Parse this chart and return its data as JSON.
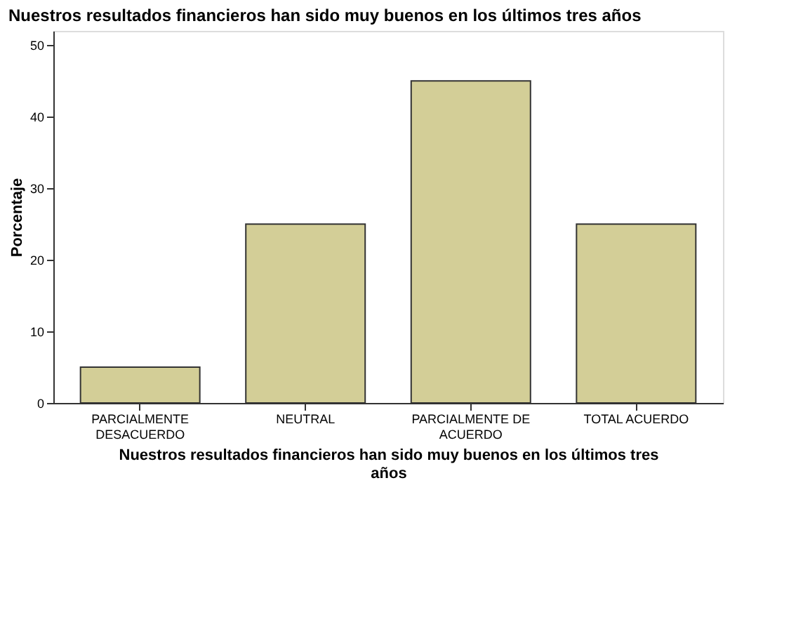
{
  "chart_data": {
    "type": "bar",
    "title": "Nuestros resultados financieros han sido muy buenos en los últimos tres años",
    "xlabel": "Nuestros resultados financieros han sido muy buenos en los últimos tres años",
    "ylabel": "Porcentaje",
    "categories": [
      "PARCIALMENTE DESACUERDO",
      "NEUTRAL",
      "PARCIALMENTE DE ACUERDO",
      "TOTAL ACUERDO"
    ],
    "values": [
      5,
      25,
      45,
      25
    ],
    "color": "#d3ce97",
    "ylim": [
      0,
      52
    ],
    "yticks": [
      0,
      10,
      20,
      30,
      40,
      50
    ],
    "grid": false
  }
}
